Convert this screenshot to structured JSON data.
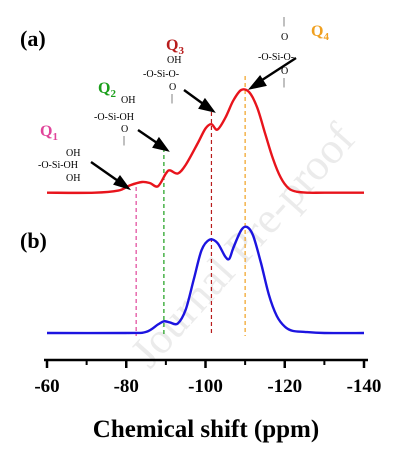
{
  "chart_data": {
    "type": "line",
    "title": "",
    "xlabel": "Chemical shift (ppm)",
    "ylabel": "",
    "xlim": [
      -60,
      -140
    ],
    "xticks": [
      -60,
      -80,
      -100,
      -120,
      -140
    ],
    "xtick_labels": [
      "-60",
      "-80",
      "-100",
      "-120",
      "-140"
    ],
    "grid": false,
    "panels": [
      {
        "label": "(a)",
        "color": "#e8141c",
        "x": [
          -60,
          -72,
          -78,
          -81,
          -84,
          -86,
          -88,
          -90,
          -91,
          -93,
          -95,
          -98,
          -100,
          -101.5,
          -103,
          -105,
          -107,
          -109,
          -111,
          -113,
          -115,
          -117,
          -119,
          -121,
          -123,
          -126,
          -130,
          -140
        ],
        "y": [
          0.04,
          0.04,
          0.06,
          0.11,
          0.14,
          0.13,
          0.1,
          0.22,
          0.25,
          0.22,
          0.3,
          0.5,
          0.64,
          0.68,
          0.63,
          0.74,
          0.9,
          1.0,
          0.98,
          0.84,
          0.6,
          0.36,
          0.18,
          0.08,
          0.05,
          0.04,
          0.04,
          0.04
        ]
      },
      {
        "label": "(b)",
        "color": "#1c14e0",
        "x": [
          -60,
          -80,
          -85,
          -88,
          -89.5,
          -91,
          -93,
          -95,
          -97,
          -99,
          -101,
          -103,
          -105,
          -106,
          -107,
          -109,
          -110.5,
          -112,
          -114,
          -116,
          -118,
          -120,
          -122,
          -125,
          -130,
          -140
        ],
        "y": [
          0.0,
          0.0,
          0.01,
          0.08,
          0.11,
          0.1,
          0.09,
          0.22,
          0.5,
          0.78,
          0.88,
          0.85,
          0.72,
          0.7,
          0.8,
          0.97,
          1.0,
          0.92,
          0.66,
          0.36,
          0.16,
          0.06,
          0.02,
          0.01,
          0.0,
          0.0
        ]
      }
    ],
    "reference_lines": [
      {
        "x": -82.5,
        "color": "#e0449a"
      },
      {
        "x": -89.5,
        "color": "#1a9e1a"
      },
      {
        "x": -101.5,
        "color": "#b81c1c"
      },
      {
        "x": -110,
        "color": "#f0a020"
      }
    ],
    "annotations": [
      {
        "main": "Q",
        "sub": "1",
        "color": "#e0449a",
        "structure": [
          "OH",
          "-O-Si-OH",
          "OH"
        ]
      },
      {
        "main": "Q",
        "sub": "2",
        "color": "#1a9e1a",
        "structure": [
          "OH",
          "-O-Si-OH",
          "O",
          "|"
        ]
      },
      {
        "main": "Q",
        "sub": "3",
        "color": "#b81c1c",
        "structure": [
          "OH",
          "-O-Si-O-",
          "O",
          "|"
        ]
      },
      {
        "main": "Q",
        "sub": "4",
        "color": "#f0a020",
        "structure": [
          "|",
          "O",
          "-O-Si-O-",
          "O",
          "|"
        ]
      }
    ]
  },
  "watermark": "Journal Pre-proof"
}
